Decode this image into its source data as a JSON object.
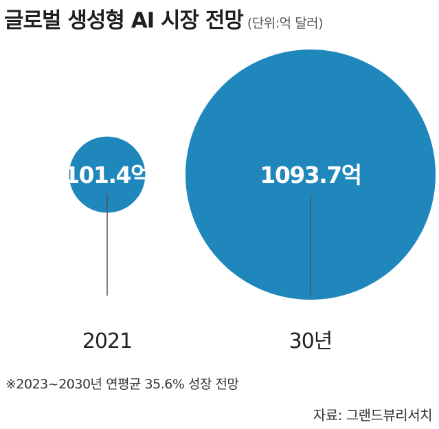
{
  "title": "글로벌 생성형 AI 시장 전망",
  "unit": "(단위:억 달러)",
  "footnote": "※2023~2030년 연평균 35.6% 성장 전망",
  "source": "자료:  그랜드뷰리서치",
  "colors": {
    "bubble": "#1f87bb",
    "line": "#555555",
    "text": "#222222"
  },
  "chart_data": {
    "type": "bubble",
    "title": "글로벌 생성형 AI 시장 전망",
    "unit": "억 달러",
    "categories": [
      "2021",
      "30년"
    ],
    "values": [
      101.4,
      1093.7
    ],
    "value_labels": [
      "101.4억",
      "1093.7억"
    ]
  }
}
